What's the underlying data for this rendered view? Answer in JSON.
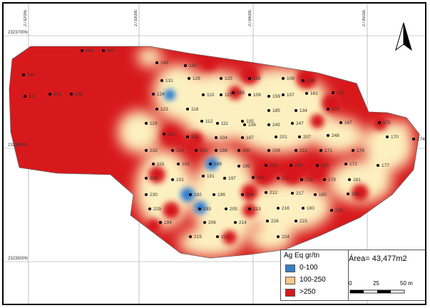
{
  "map": {
    "x_coords": [
      "273200E",
      "273300E",
      "273400E",
      "273500E"
    ],
    "y_coords": [
      "2323700N",
      "2323600N",
      "2323500N"
    ],
    "legend_title": "Ag Eq gr/tn",
    "legend_items": [
      {
        "label": "0-100",
        "color": "#3a7fc4"
      },
      {
        "label": "100-250",
        "color": "#f7c98a"
      },
      {
        "label": ">250",
        "color": "#d7191c"
      }
    ],
    "area_label": "Área= 43,477m2",
    "scale_labels": [
      "0",
      "25",
      "50 m"
    ],
    "north_icon": "north-arrow-icon",
    "colors": {
      "high": "#d7191c",
      "mid": "#fdf0c0",
      "low": "#2f7bd1",
      "outline": "#555555"
    }
  },
  "points": [
    {
      "id": "188"
    },
    {
      "id": "140"
    },
    {
      "id": "145"
    },
    {
      "id": "130"
    },
    {
      "id": "125"
    },
    {
      "id": "116"
    },
    {
      "id": "108"
    },
    {
      "id": "138"
    },
    {
      "id": "144"
    },
    {
      "id": "131"
    },
    {
      "id": "126"
    },
    {
      "id": "117"
    },
    {
      "id": "109"
    },
    {
      "id": "107"
    },
    {
      "id": "161"
    },
    {
      "id": "132"
    },
    {
      "id": "127"
    },
    {
      "id": "124"
    },
    {
      "id": "110"
    },
    {
      "id": "158"
    },
    {
      "id": "159"
    },
    {
      "id": "133"
    },
    {
      "id": "128"
    },
    {
      "id": "123"
    },
    {
      "id": "118"
    },
    {
      "id": "111"
    },
    {
      "id": "106"
    },
    {
      "id": "185"
    },
    {
      "id": "134"
    },
    {
      "id": "122"
    },
    {
      "id": "119"
    },
    {
      "id": "112"
    },
    {
      "id": "105"
    },
    {
      "id": "245"
    },
    {
      "id": "247"
    },
    {
      "id": "167"
    },
    {
      "id": "175"
    },
    {
      "id": "121"
    },
    {
      "id": "113"
    },
    {
      "id": "104"
    },
    {
      "id": "187"
    },
    {
      "id": "201"
    },
    {
      "id": "207"
    },
    {
      "id": "248"
    },
    {
      "id": "170"
    },
    {
      "id": "174"
    },
    {
      "id": "232"
    },
    {
      "id": "114"
    },
    {
      "id": "103"
    },
    {
      "id": "188"
    },
    {
      "id": "200"
    },
    {
      "id": "208"
    },
    {
      "id": "221"
    },
    {
      "id": "171"
    },
    {
      "id": "176"
    },
    {
      "id": "115"
    },
    {
      "id": "102"
    },
    {
      "id": "189"
    },
    {
      "id": "199"
    },
    {
      "id": "209"
    },
    {
      "id": "219"
    },
    {
      "id": "220"
    },
    {
      "id": "172"
    },
    {
      "id": "177"
    },
    {
      "id": "231"
    },
    {
      "id": "101"
    },
    {
      "id": "191"
    },
    {
      "id": "197"
    },
    {
      "id": "203"
    },
    {
      "id": "211"
    },
    {
      "id": "218"
    },
    {
      "id": "178"
    },
    {
      "id": "181"
    },
    {
      "id": "230"
    },
    {
      "id": "192"
    },
    {
      "id": "196"
    },
    {
      "id": "204"
    },
    {
      "id": "212"
    },
    {
      "id": "217"
    },
    {
      "id": "180"
    },
    {
      "id": "182"
    },
    {
      "id": "229"
    },
    {
      "id": "193"
    },
    {
      "id": "205"
    },
    {
      "id": "213"
    },
    {
      "id": "216"
    },
    {
      "id": "183"
    },
    {
      "id": "225"
    },
    {
      "id": "194"
    },
    {
      "id": "206"
    },
    {
      "id": "214"
    },
    {
      "id": "226"
    },
    {
      "id": "223"
    },
    {
      "id": "215"
    },
    {
      "id": "227"
    },
    {
      "id": "224"
    }
  ]
}
